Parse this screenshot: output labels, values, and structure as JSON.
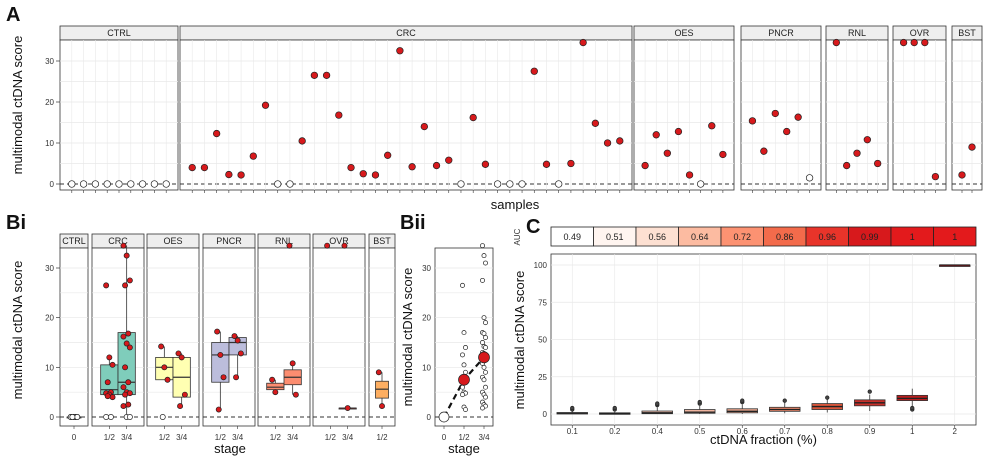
{
  "panel_labels": {
    "A": "A",
    "Bi": "Bi",
    "Bii": "Bii",
    "C": "C"
  },
  "colors": {
    "red": "#d7191c",
    "open": "#ffffff",
    "strip": "#eeeeee",
    "grid": "#e8e8e8",
    "teal": "#7fcdbb",
    "yellow": "#ffffb2",
    "purple": "#bcbddc",
    "salmon": "#fc8d70",
    "orange": "#fdae61",
    "darkred": "#a50f15"
  },
  "chart_data": [
    {
      "id": "A",
      "type": "scatter",
      "title": "",
      "xlabel": "samples",
      "ylabel": "multimodal ctDNA score",
      "ylim": [
        0,
        35
      ],
      "yticks": [
        0,
        10,
        20,
        30
      ],
      "facets": [
        {
          "name": "CTRL",
          "open": [
            0,
            0,
            0,
            0,
            0,
            0,
            0,
            0,
            0
          ],
          "red": []
        },
        {
          "name": "CRC",
          "values": [
            4,
            4,
            12.3,
            2.3,
            2.2,
            6.8,
            19.2,
            0,
            0,
            10.5,
            26.5,
            26.5,
            16.8,
            4,
            2.5,
            2.2,
            7,
            32.5,
            4.2,
            14,
            4.5,
            5.8,
            0,
            16.2,
            4.8,
            0,
            0,
            0,
            27.5,
            4.8,
            0,
            5,
            34.5,
            14.8,
            10,
            10.5
          ],
          "red_mask": [
            1,
            1,
            1,
            1,
            1,
            1,
            1,
            0,
            0,
            1,
            1,
            1,
            1,
            1,
            1,
            1,
            1,
            1,
            1,
            1,
            1,
            1,
            0,
            1,
            1,
            0,
            0,
            0,
            1,
            1,
            0,
            1,
            1,
            1,
            1,
            1
          ]
        },
        {
          "name": "OES",
          "values": [
            4.5,
            12,
            7.5,
            12.8,
            2.2,
            0,
            14.2,
            7.2
          ],
          "red_mask": [
            1,
            1,
            1,
            1,
            1,
            0,
            1,
            1
          ]
        },
        {
          "name": "PNCR",
          "values": [
            15.4,
            8,
            17.2,
            12.8,
            16.3,
            1.5
          ],
          "red_mask": [
            1,
            1,
            1,
            1,
            1,
            0
          ]
        },
        {
          "name": "RNL",
          "values": [
            34.5,
            4.5,
            7.5,
            10.8,
            5
          ],
          "red_mask": [
            1,
            1,
            1,
            1,
            1
          ]
        },
        {
          "name": "OVR",
          "values": [
            34.5,
            34.5,
            34.5,
            1.8
          ],
          "red_mask": [
            1,
            1,
            1,
            1
          ]
        },
        {
          "name": "BST",
          "values": [
            2.2,
            9
          ],
          "red_mask": [
            1,
            1
          ]
        }
      ]
    },
    {
      "id": "Bi",
      "type": "box",
      "xlabel": "stage",
      "ylabel": "multimodal ctDNA score",
      "ylim": [
        -1,
        35
      ],
      "yticks": [
        0,
        10,
        20,
        30
      ],
      "facets": [
        {
          "name": "CTRL",
          "groups": [
            {
              "label": "0",
              "box": [
                0,
                0,
                0,
                0,
                0
              ],
              "color": "#ffffff",
              "points": [
                0,
                0,
                0,
                0,
                0,
                0,
                0,
                0,
                0
              ],
              "open": true
            }
          ]
        },
        {
          "name": "CRC",
          "groups": [
            {
              "label": "1/2",
              "box": [
                4.2,
                4.5,
                5.5,
                10.5,
                12.3
              ],
              "color": "#7fcdbb",
              "points": [
                26.5,
                12,
                10.5,
                7,
                5,
                4.8,
                4.5,
                4,
                4.2,
                0,
                0
              ],
              "open": false
            },
            {
              "label": "3/4",
              "box": [
                0,
                4.5,
                7,
                17,
                34.5
              ],
              "color": "#7fcdbb",
              "points": [
                34.5,
                32.5,
                27.5,
                26.5,
                16.8,
                16.2,
                14.8,
                14,
                10,
                7,
                6,
                5,
                4.8,
                4.5,
                2.5,
                2.2,
                0,
                0
              ],
              "open": false
            }
          ]
        },
        {
          "name": "OES",
          "groups": [
            {
              "label": "1/2",
              "box": [
                7.5,
                7.5,
                10,
                12,
                14.2
              ],
              "color": "#ffffb2",
              "points": [
                14.2,
                10,
                7.5,
                0
              ],
              "open": false
            },
            {
              "label": "3/4",
              "box": [
                2,
                4,
                8,
                12,
                12.8
              ],
              "color": "#ffffb2",
              "points": [
                12.8,
                12,
                4.5,
                2.2
              ],
              "open": false
            }
          ]
        },
        {
          "name": "PNCR",
          "groups": [
            {
              "label": "1/2",
              "box": [
                1.5,
                7,
                12.5,
                15,
                17.2
              ],
              "color": "#bcbddc",
              "points": [
                17.2,
                12.5,
                8,
                1.5
              ],
              "open": false
            },
            {
              "label": "3/4",
              "box": [
                8,
                12.5,
                15,
                16,
                16.3
              ],
              "color": "#bcbddc",
              "points": [
                16.3,
                15.4,
                12.8,
                8
              ],
              "open": false
            }
          ]
        },
        {
          "name": "RNL",
          "groups": [
            {
              "label": "1/2",
              "box": [
                5,
                5.5,
                6,
                6.8,
                7.5
              ],
              "color": "#fc8d70",
              "points": [
                7.5,
                5
              ],
              "open": false
            },
            {
              "label": "3/4",
              "box": [
                4.5,
                6.5,
                8,
                9.5,
                10.8
              ],
              "color": "#fc8d70",
              "points": [
                34.5,
                10.8,
                4.5
              ],
              "open": false
            }
          ]
        },
        {
          "name": "OVR",
          "groups": [
            {
              "label": "1/2",
              "box": null,
              "color": "#d7191c",
              "points": [
                34.5
              ],
              "open": false
            },
            {
              "label": "3/4",
              "box": [
                1.8,
                1.8,
                1.8,
                1.8,
                1.8
              ],
              "color": "#d7191c",
              "points": [
                34.5,
                1.8
              ],
              "open": false
            }
          ]
        },
        {
          "name": "BST",
          "groups": [
            {
              "label": "1/2",
              "box": [
                2.2,
                3.8,
                5.6,
                7.2,
                9
              ],
              "color": "#fdae61",
              "points": [
                9,
                2.2
              ],
              "open": false
            }
          ]
        }
      ]
    },
    {
      "id": "Bii",
      "type": "scatter",
      "xlabel": "stage",
      "ylabel": "multimodal ctDNA score",
      "ylim": [
        -1,
        35
      ],
      "yticks": [
        0,
        10,
        20,
        30
      ],
      "categories": [
        "0",
        "1/2",
        "3/4"
      ],
      "means": [
        0,
        7.5,
        12
      ],
      "points_1_2": [
        26.5,
        17,
        14,
        12.5,
        10.5,
        9,
        8,
        7.5,
        7,
        6,
        5,
        4.8,
        4.5,
        2,
        1.5
      ],
      "points_3_4": [
        34.5,
        32.5,
        31,
        27.5,
        20,
        19,
        17,
        16.8,
        16,
        15,
        14.2,
        14,
        13,
        12.8,
        12,
        10.8,
        10,
        9,
        8,
        7.5,
        6,
        5,
        4.5,
        4,
        3,
        2.5,
        2.2,
        1.8
      ]
    },
    {
      "id": "C",
      "type": "box",
      "xlabel": "ctDNA fraction (%)",
      "ylabel": "multimodal ctDNA score",
      "ylim": [
        0,
        100
      ],
      "yticks": [
        0,
        25,
        50,
        75,
        100
      ],
      "categories": [
        "0.1",
        "0.2",
        "0.4",
        "0.5",
        "0.6",
        "0.7",
        "0.8",
        "0.9",
        "1",
        "2"
      ],
      "boxes": [
        {
          "median": 0.5,
          "q1": 0,
          "q3": 1,
          "min": 0,
          "max": 2,
          "outliers": [
            3,
            4
          ]
        },
        {
          "median": 0.2,
          "q1": 0,
          "q3": 0.8,
          "min": 0,
          "max": 1.5,
          "outliers": [
            3,
            4
          ]
        },
        {
          "median": 0.8,
          "q1": 0.2,
          "q3": 2,
          "min": 0,
          "max": 4.5,
          "outliers": [
            6,
            7
          ]
        },
        {
          "median": 1.2,
          "q1": 0.5,
          "q3": 3,
          "min": 0,
          "max": 5.5,
          "outliers": [
            7,
            8
          ]
        },
        {
          "median": 1.8,
          "q1": 0.8,
          "q3": 3.5,
          "min": 0,
          "max": 6.5,
          "outliers": [
            8,
            9
          ]
        },
        {
          "median": 3,
          "q1": 1.8,
          "q3": 4.5,
          "min": 0.5,
          "max": 8,
          "outliers": [
            9
          ]
        },
        {
          "median": 5,
          "q1": 3,
          "q3": 7,
          "min": 1,
          "max": 10,
          "outliers": [
            11
          ]
        },
        {
          "median": 7.5,
          "q1": 5.5,
          "q3": 9.5,
          "min": 2,
          "max": 13,
          "outliers": [
            15
          ]
        },
        {
          "median": 10.5,
          "q1": 9,
          "q3": 12.5,
          "min": 4,
          "max": 17,
          "outliers": [
            3,
            4
          ]
        },
        {
          "median": 100,
          "q1": 100,
          "q3": 100,
          "min": 100,
          "max": 100,
          "outliers": []
        }
      ],
      "box_colors": [
        "#f3d6cf",
        "#f5d8d0",
        "#f2c3b2",
        "#f0b5a0",
        "#eda98f",
        "#e78568",
        "#d9553a",
        "#c8302a",
        "#b81d1d",
        "#a50f15"
      ],
      "auc_label": "AUC",
      "auc": [
        "0.49",
        "0.51",
        "0.56",
        "0.64",
        "0.72",
        "0.86",
        "0.96",
        "0.99",
        "1",
        "1"
      ],
      "auc_colors": [
        "#ffffff",
        "#fff5f0",
        "#fde0d2",
        "#fcbba1",
        "#fc9272",
        "#f36b4b",
        "#e8342a",
        "#d7191c",
        "#e31a1c",
        "#e31a1c"
      ],
      "auc_text_colors": [
        "#222222",
        "#222222",
        "#222222",
        "#222222",
        "#222222",
        "#222222",
        "#222222",
        "#222222",
        "#222222",
        "#222222"
      ]
    }
  ]
}
